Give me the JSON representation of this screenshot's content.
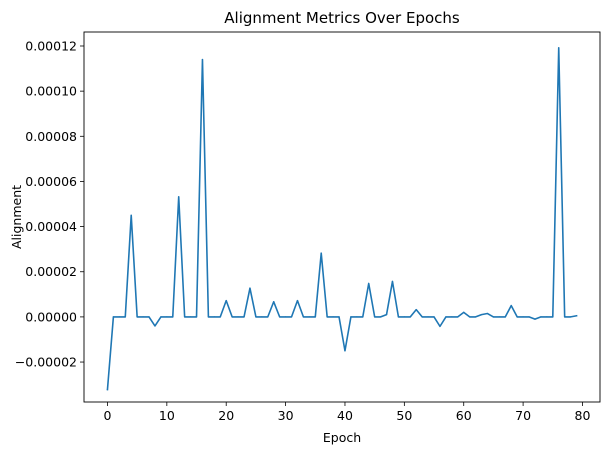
{
  "chart_data": {
    "type": "line",
    "title": "Alignment Metrics Over Epochs",
    "xlabel": "Epoch",
    "ylabel": "Alignment",
    "xlim": [
      -3.95,
      82.95
    ],
    "ylim": [
      -3.77e-05,
      0.0001262
    ],
    "xticks": [
      0,
      10,
      20,
      30,
      40,
      50,
      60,
      70,
      80
    ],
    "xtick_labels": [
      "0",
      "10",
      "20",
      "30",
      "40",
      "50",
      "60",
      "70",
      "80"
    ],
    "yticks": [
      -2e-05,
      0,
      2e-05,
      4e-05,
      6e-05,
      8e-05,
      0.0001,
      0.00012
    ],
    "ytick_labels": [
      "−0.00002",
      "0.00000",
      "0.00002",
      "0.00004",
      "0.00006",
      "0.00008",
      "0.00010",
      "0.00012"
    ],
    "grid": false,
    "legend": "none",
    "series": [
      {
        "color": "#1f77b4",
        "x": [
          0,
          1,
          2,
          3,
          4,
          5,
          6,
          7,
          8,
          9,
          10,
          11,
          12,
          13,
          14,
          15,
          16,
          17,
          18,
          19,
          20,
          21,
          22,
          23,
          24,
          25,
          26,
          27,
          28,
          29,
          30,
          31,
          32,
          33,
          34,
          35,
          36,
          37,
          38,
          39,
          40,
          41,
          42,
          43,
          44,
          45,
          46,
          47,
          48,
          49,
          50,
          51,
          52,
          53,
          54,
          55,
          56,
          57,
          58,
          59,
          60,
          61,
          62,
          63,
          64,
          65,
          66,
          67,
          68,
          69,
          70,
          71,
          72,
          73,
          74,
          75,
          76,
          77,
          78,
          79
        ],
        "values": [
          -3.22e-05,
          0,
          0,
          0,
          4.5e-05,
          0,
          0,
          0,
          -4e-06,
          0,
          0,
          0,
          5.32e-05,
          0,
          0,
          0,
          0.000114,
          0,
          0,
          0,
          7.2e-06,
          0,
          0,
          0,
          1.27e-05,
          0,
          0,
          0,
          6.7e-06,
          0,
          0,
          0,
          7.2e-06,
          0,
          0,
          0,
          2.82e-05,
          0,
          0,
          0,
          -1.5e-05,
          0,
          0,
          0,
          1.48e-05,
          0,
          0,
          1e-06,
          1.57e-05,
          0,
          0,
          0,
          3.2e-06,
          0,
          0,
          0,
          -4.2e-06,
          0,
          0,
          0,
          2e-06,
          0,
          0,
          1e-06,
          1.5e-06,
          0,
          0,
          0,
          5e-06,
          0,
          0,
          0,
          -1e-06,
          0,
          0,
          0,
          0.0001192,
          0,
          0,
          5e-07
        ]
      }
    ]
  }
}
